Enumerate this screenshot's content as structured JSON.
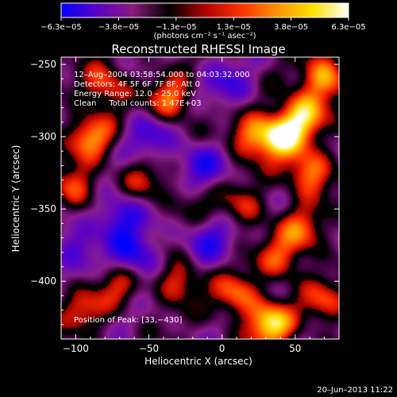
{
  "chart_data": {
    "type": "heatmap",
    "title": "Reconstructed RHESSI Image",
    "xlabel": "Heliocentric X (arcsec)",
    "ylabel": "Heliocentric Y (arcsec)",
    "xlim": [
      -110,
      80
    ],
    "ylim": [
      -440,
      -245
    ],
    "x_ticks": [
      -100,
      -50,
      0,
      50
    ],
    "x_tick_labels": [
      "−100",
      "−50",
      "0",
      "50"
    ],
    "y_ticks": [
      -250,
      -300,
      -350,
      -400
    ],
    "y_tick_labels": [
      "−250",
      "−300",
      "−350",
      "−400"
    ],
    "colorbar": {
      "range": [
        -6.3e-05,
        6.3e-05
      ],
      "tick_labels": [
        "−6.3e−05",
        "−3.8e−05",
        "−1.3e−05",
        "1.3e−05",
        "3.8e−05",
        "6.3e−05"
      ],
      "unit_label": "(photons cm⁻² s⁻¹ asec⁻²)",
      "colors": [
        "#0000ff",
        "#5a00c8",
        "#8a1a7a",
        "#000000",
        "#b00000",
        "#ff3000",
        "#ff9000",
        "#ffe000",
        "#ffffff"
      ]
    },
    "info_lines": [
      "12–Aug–2004 03:58:54.000 to 04:03:32.000",
      "Detectors: 4F 5F 6F 7F 8F, Att 0",
      "Energy Range: 12.0 – 25.0 keV",
      "Clean     Total counts: 1.47E+03"
    ],
    "peak_label": "Position of Peak: [33,−430]",
    "peak_position": [
      33,
      -430
    ],
    "bright_sources": [
      {
        "x": 40,
        "y": -300,
        "level": 1.0
      },
      {
        "x": 55,
        "y": -285,
        "level": 0.9
      },
      {
        "x": 70,
        "y": -260,
        "level": 0.85
      },
      {
        "x": 60,
        "y": -325,
        "level": 0.8
      },
      {
        "x": 20,
        "y": -300,
        "level": 0.7
      },
      {
        "x": -35,
        "y": -275,
        "level": 0.7
      },
      {
        "x": -80,
        "y": -265,
        "level": 0.65
      },
      {
        "x": -90,
        "y": -300,
        "level": 0.75
      },
      {
        "x": -100,
        "y": -335,
        "level": 0.6
      },
      {
        "x": -70,
        "y": -400,
        "level": 0.55
      },
      {
        "x": -30,
        "y": -400,
        "level": 0.6
      },
      {
        "x": 10,
        "y": -410,
        "level": 0.65
      },
      {
        "x": 40,
        "y": -385,
        "level": 0.55
      },
      {
        "x": 55,
        "y": -365,
        "level": 0.6
      },
      {
        "x": 33,
        "y": -430,
        "level": 1.0
      },
      {
        "x": -55,
        "y": -330,
        "level": 0.4
      },
      {
        "x": -20,
        "y": -345,
        "level": 0.35
      },
      {
        "x": 15,
        "y": -350,
        "level": 0.45
      },
      {
        "x": -95,
        "y": -420,
        "level": 0.5
      },
      {
        "x": 70,
        "y": -415,
        "level": 0.55
      }
    ],
    "dark_sources": [
      {
        "x": -70,
        "y": -355,
        "level": 0.7
      },
      {
        "x": -60,
        "y": -385,
        "level": 0.8
      },
      {
        "x": -15,
        "y": -320,
        "level": 0.6
      },
      {
        "x": -10,
        "y": -370,
        "level": 0.6
      },
      {
        "x": -100,
        "y": -375,
        "level": 0.5
      },
      {
        "x": 5,
        "y": -265,
        "level": 0.5
      },
      {
        "x": -50,
        "y": -300,
        "level": 0.5
      }
    ]
  },
  "footer": {
    "timestamp": "20–Jun–2013 11:22"
  }
}
